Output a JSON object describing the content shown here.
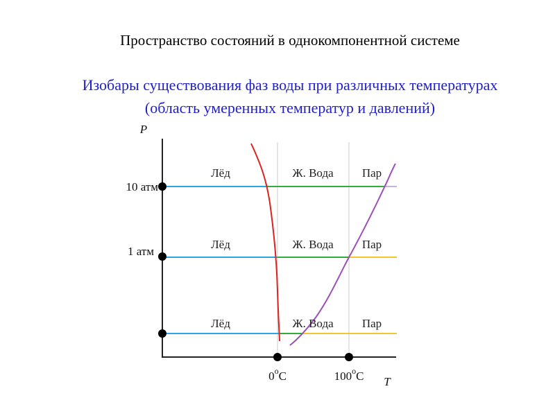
{
  "title": "Пространство состояний в однокомпонентной системе",
  "subtitle": {
    "line1": "Изобары существования фаз воды при различных температурах",
    "line2": "(область умеренных температур и давлений)"
  },
  "axes": {
    "y_label": "P",
    "x_label": "T"
  },
  "pressure_labels": [
    "10 атм",
    "1 атм"
  ],
  "temperature_labels": [
    {
      "value": "0",
      "sup": "o",
      "unit": "C"
    },
    {
      "value": "100",
      "sup": "o",
      "unit": "C"
    }
  ],
  "isobars": [
    {
      "phases": [
        "Лёд",
        "Ж. Вода",
        "Пар"
      ]
    },
    {
      "phases": [
        "Лёд",
        "Ж. Вода",
        "Пар"
      ]
    },
    {
      "phases": [
        "Лёд",
        "Ж. Вода",
        "Пар"
      ]
    }
  ]
}
